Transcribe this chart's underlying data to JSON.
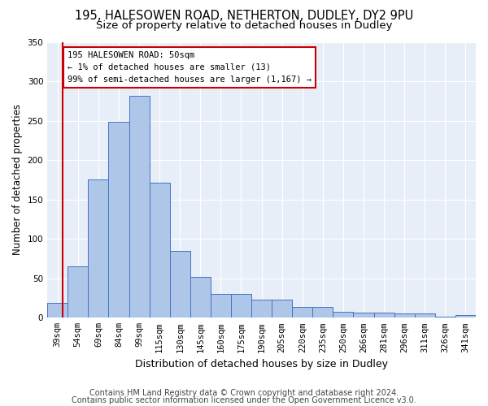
{
  "title1": "195, HALESOWEN ROAD, NETHERTON, DUDLEY, DY2 9PU",
  "title2": "Size of property relative to detached houses in Dudley",
  "xlabel": "Distribution of detached houses by size in Dudley",
  "ylabel": "Number of detached properties",
  "categories": [
    "39sqm",
    "54sqm",
    "69sqm",
    "84sqm",
    "99sqm",
    "115sqm",
    "130sqm",
    "145sqm",
    "160sqm",
    "175sqm",
    "190sqm",
    "205sqm",
    "220sqm",
    "235sqm",
    "250sqm",
    "266sqm",
    "281sqm",
    "296sqm",
    "311sqm",
    "326sqm",
    "341sqm"
  ],
  "values": [
    19,
    65,
    175,
    249,
    282,
    171,
    85,
    52,
    30,
    30,
    23,
    23,
    14,
    14,
    8,
    7,
    6,
    5,
    5,
    1,
    3
  ],
  "bar_color": "#aec6e8",
  "bar_edge_color": "#4472c4",
  "annotation_line_color": "#cc0000",
  "annotation_box_text": "195 HALESOWEN ROAD: 50sqm\n← 1% of detached houses are smaller (13)\n99% of semi-detached houses are larger (1,167) →",
  "footer1": "Contains HM Land Registry data © Crown copyright and database right 2024.",
  "footer2": "Contains public sector information licensed under the Open Government Licence v3.0.",
  "ylim": [
    0,
    350
  ],
  "bg_color": "#e8eef8",
  "fig_bg_color": "#ffffff",
  "grid_color": "#ffffff",
  "title1_fontsize": 10.5,
  "title2_fontsize": 9.5,
  "xlabel_fontsize": 9,
  "ylabel_fontsize": 8.5,
  "tick_fontsize": 7.5,
  "footer_fontsize": 7
}
